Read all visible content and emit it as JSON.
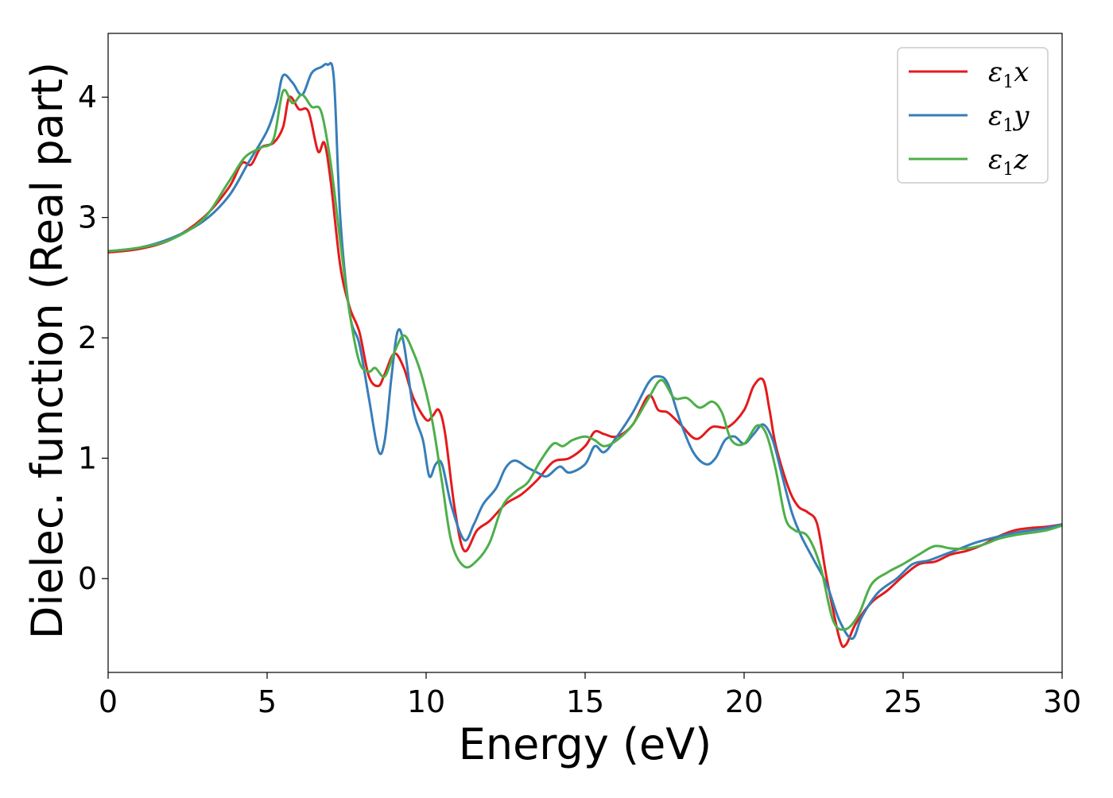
{
  "colors": {
    "eps_x": "#e41a1c",
    "eps_y": "#377eb8",
    "eps_z": "#4daf4a",
    "frame": "#000000",
    "legend_border": "#cccccc"
  },
  "chart_data": {
    "type": "line",
    "xlabel": "Energy (eV)",
    "ylabel": "Dielec. function (Real part)",
    "xlim": [
      0,
      30
    ],
    "ylim": [
      -0.78,
      4.53
    ],
    "grid": false,
    "legend_position": "top-right",
    "x_ticks": [
      0,
      5,
      10,
      15,
      20,
      25,
      30
    ],
    "y_ticks": [
      0,
      1,
      2,
      3,
      4
    ],
    "x_tick_labels": [
      "0",
      "5",
      "10",
      "15",
      "20",
      "25",
      "30"
    ],
    "y_tick_labels": [
      "0",
      "1",
      "2",
      "3",
      "4"
    ],
    "series": [
      {
        "name": "ε1x",
        "legend_main": "ε",
        "legend_sub": "1",
        "legend_var": "x",
        "color_key": "eps_x",
        "points": [
          [
            0,
            2.71
          ],
          [
            1,
            2.74
          ],
          [
            2,
            2.82
          ],
          [
            3,
            3.0
          ],
          [
            3.8,
            3.25
          ],
          [
            4.2,
            3.45
          ],
          [
            4.5,
            3.44
          ],
          [
            4.8,
            3.58
          ],
          [
            5.2,
            3.62
          ],
          [
            5.5,
            3.75
          ],
          [
            5.7,
            4.0
          ],
          [
            6.0,
            3.9
          ],
          [
            6.3,
            3.88
          ],
          [
            6.6,
            3.55
          ],
          [
            6.8,
            3.62
          ],
          [
            7.0,
            3.3
          ],
          [
            7.3,
            2.6
          ],
          [
            7.6,
            2.25
          ],
          [
            7.9,
            2.05
          ],
          [
            8.2,
            1.68
          ],
          [
            8.5,
            1.6
          ],
          [
            8.7,
            1.7
          ],
          [
            9.0,
            1.87
          ],
          [
            9.3,
            1.75
          ],
          [
            9.6,
            1.5
          ],
          [
            10.0,
            1.32
          ],
          [
            10.2,
            1.35
          ],
          [
            10.4,
            1.4
          ],
          [
            10.6,
            1.2
          ],
          [
            10.9,
            0.58
          ],
          [
            11.2,
            0.23
          ],
          [
            11.6,
            0.4
          ],
          [
            12.0,
            0.48
          ],
          [
            12.5,
            0.62
          ],
          [
            13.0,
            0.7
          ],
          [
            13.5,
            0.82
          ],
          [
            14.0,
            0.97
          ],
          [
            14.5,
            1.0
          ],
          [
            15.0,
            1.1
          ],
          [
            15.3,
            1.22
          ],
          [
            15.6,
            1.2
          ],
          [
            16.0,
            1.18
          ],
          [
            16.5,
            1.28
          ],
          [
            17.0,
            1.52
          ],
          [
            17.3,
            1.4
          ],
          [
            17.6,
            1.38
          ],
          [
            18.0,
            1.28
          ],
          [
            18.5,
            1.16
          ],
          [
            19.0,
            1.26
          ],
          [
            19.5,
            1.26
          ],
          [
            20.0,
            1.4
          ],
          [
            20.3,
            1.6
          ],
          [
            20.6,
            1.65
          ],
          [
            20.8,
            1.4
          ],
          [
            21.0,
            1.1
          ],
          [
            21.4,
            0.75
          ],
          [
            21.7,
            0.6
          ],
          [
            22.0,
            0.55
          ],
          [
            22.3,
            0.45
          ],
          [
            22.6,
            0.0
          ],
          [
            23.0,
            -0.5
          ],
          [
            23.2,
            -0.55
          ],
          [
            23.5,
            -0.38
          ],
          [
            24.0,
            -0.2
          ],
          [
            24.5,
            -0.1
          ],
          [
            25.0,
            0.02
          ],
          [
            25.5,
            0.12
          ],
          [
            26.0,
            0.14
          ],
          [
            26.5,
            0.2
          ],
          [
            27.0,
            0.23
          ],
          [
            27.5,
            0.28
          ],
          [
            28.0,
            0.35
          ],
          [
            28.5,
            0.4
          ],
          [
            29.0,
            0.42
          ],
          [
            29.5,
            0.43
          ],
          [
            30,
            0.45
          ]
        ]
      },
      {
        "name": "ε1y",
        "legend_main": "ε",
        "legend_sub": "1",
        "legend_var": "y",
        "color_key": "eps_y",
        "points": [
          [
            0,
            2.72
          ],
          [
            1,
            2.75
          ],
          [
            2,
            2.83
          ],
          [
            3,
            2.97
          ],
          [
            3.8,
            3.18
          ],
          [
            4.4,
            3.45
          ],
          [
            5.0,
            3.72
          ],
          [
            5.3,
            3.95
          ],
          [
            5.5,
            4.18
          ],
          [
            5.8,
            4.12
          ],
          [
            6.1,
            4.02
          ],
          [
            6.4,
            4.2
          ],
          [
            6.7,
            4.25
          ],
          [
            6.9,
            4.27
          ],
          [
            7.1,
            4.15
          ],
          [
            7.3,
            3.0
          ],
          [
            7.6,
            2.2
          ],
          [
            7.9,
            1.95
          ],
          [
            8.2,
            1.5
          ],
          [
            8.5,
            1.06
          ],
          [
            8.7,
            1.15
          ],
          [
            8.9,
            1.65
          ],
          [
            9.1,
            2.05
          ],
          [
            9.3,
            1.95
          ],
          [
            9.6,
            1.4
          ],
          [
            9.9,
            1.15
          ],
          [
            10.1,
            0.85
          ],
          [
            10.3,
            0.95
          ],
          [
            10.5,
            0.95
          ],
          [
            10.8,
            0.6
          ],
          [
            11.2,
            0.32
          ],
          [
            11.5,
            0.45
          ],
          [
            11.8,
            0.62
          ],
          [
            12.2,
            0.75
          ],
          [
            12.5,
            0.92
          ],
          [
            12.8,
            0.98
          ],
          [
            13.2,
            0.92
          ],
          [
            13.5,
            0.88
          ],
          [
            13.8,
            0.85
          ],
          [
            14.2,
            0.93
          ],
          [
            14.5,
            0.88
          ],
          [
            15.0,
            0.95
          ],
          [
            15.3,
            1.1
          ],
          [
            15.6,
            1.05
          ],
          [
            16.0,
            1.18
          ],
          [
            16.5,
            1.38
          ],
          [
            17.0,
            1.63
          ],
          [
            17.3,
            1.68
          ],
          [
            17.6,
            1.62
          ],
          [
            18.0,
            1.3
          ],
          [
            18.4,
            1.05
          ],
          [
            18.8,
            0.95
          ],
          [
            19.1,
            1.0
          ],
          [
            19.4,
            1.15
          ],
          [
            19.7,
            1.18
          ],
          [
            20.0,
            1.12
          ],
          [
            20.3,
            1.2
          ],
          [
            20.6,
            1.28
          ],
          [
            20.9,
            1.15
          ],
          [
            21.2,
            0.85
          ],
          [
            21.5,
            0.55
          ],
          [
            21.8,
            0.35
          ],
          [
            22.2,
            0.15
          ],
          [
            22.6,
            -0.05
          ],
          [
            23.0,
            -0.35
          ],
          [
            23.4,
            -0.5
          ],
          [
            23.7,
            -0.32
          ],
          [
            24.2,
            -0.12
          ],
          [
            24.8,
            0.0
          ],
          [
            25.3,
            0.12
          ],
          [
            25.8,
            0.15
          ],
          [
            26.3,
            0.2
          ],
          [
            26.8,
            0.25
          ],
          [
            27.3,
            0.3
          ],
          [
            28.0,
            0.35
          ],
          [
            28.5,
            0.38
          ],
          [
            29.0,
            0.4
          ],
          [
            29.5,
            0.42
          ],
          [
            30,
            0.45
          ]
        ]
      },
      {
        "name": "ε1z",
        "legend_main": "ε",
        "legend_sub": "1",
        "legend_var": "z",
        "color_key": "eps_z",
        "points": [
          [
            0,
            2.72
          ],
          [
            1,
            2.75
          ],
          [
            2,
            2.82
          ],
          [
            3,
            2.99
          ],
          [
            3.8,
            3.3
          ],
          [
            4.3,
            3.5
          ],
          [
            4.8,
            3.58
          ],
          [
            5.2,
            3.65
          ],
          [
            5.5,
            4.05
          ],
          [
            5.8,
            3.95
          ],
          [
            6.1,
            4.02
          ],
          [
            6.4,
            3.92
          ],
          [
            6.7,
            3.88
          ],
          [
            7.0,
            3.45
          ],
          [
            7.3,
            2.8
          ],
          [
            7.6,
            2.2
          ],
          [
            7.9,
            1.8
          ],
          [
            8.2,
            1.72
          ],
          [
            8.4,
            1.75
          ],
          [
            8.7,
            1.68
          ],
          [
            9.0,
            1.88
          ],
          [
            9.3,
            2.02
          ],
          [
            9.6,
            1.88
          ],
          [
            9.9,
            1.65
          ],
          [
            10.2,
            1.3
          ],
          [
            10.5,
            0.8
          ],
          [
            10.8,
            0.3
          ],
          [
            11.2,
            0.1
          ],
          [
            11.6,
            0.15
          ],
          [
            12.0,
            0.3
          ],
          [
            12.4,
            0.6
          ],
          [
            12.8,
            0.72
          ],
          [
            13.2,
            0.8
          ],
          [
            13.6,
            0.98
          ],
          [
            14.0,
            1.12
          ],
          [
            14.3,
            1.1
          ],
          [
            14.6,
            1.15
          ],
          [
            15.0,
            1.18
          ],
          [
            15.3,
            1.15
          ],
          [
            15.6,
            1.1
          ],
          [
            16.0,
            1.15
          ],
          [
            16.5,
            1.28
          ],
          [
            17.0,
            1.5
          ],
          [
            17.4,
            1.65
          ],
          [
            17.8,
            1.5
          ],
          [
            18.2,
            1.5
          ],
          [
            18.6,
            1.42
          ],
          [
            19.0,
            1.47
          ],
          [
            19.3,
            1.38
          ],
          [
            19.6,
            1.15
          ],
          [
            20.0,
            1.12
          ],
          [
            20.4,
            1.27
          ],
          [
            20.7,
            1.2
          ],
          [
            21.0,
            0.9
          ],
          [
            21.3,
            0.5
          ],
          [
            21.6,
            0.4
          ],
          [
            22.0,
            0.35
          ],
          [
            22.4,
            0.1
          ],
          [
            22.8,
            -0.35
          ],
          [
            23.2,
            -0.42
          ],
          [
            23.6,
            -0.3
          ],
          [
            24.0,
            -0.05
          ],
          [
            24.5,
            0.05
          ],
          [
            25.0,
            0.12
          ],
          [
            25.5,
            0.2
          ],
          [
            26.0,
            0.27
          ],
          [
            26.5,
            0.25
          ],
          [
            27.0,
            0.25
          ],
          [
            27.5,
            0.28
          ],
          [
            28.0,
            0.33
          ],
          [
            28.5,
            0.36
          ],
          [
            29.0,
            0.38
          ],
          [
            29.5,
            0.4
          ],
          [
            30,
            0.44
          ]
        ]
      }
    ]
  }
}
